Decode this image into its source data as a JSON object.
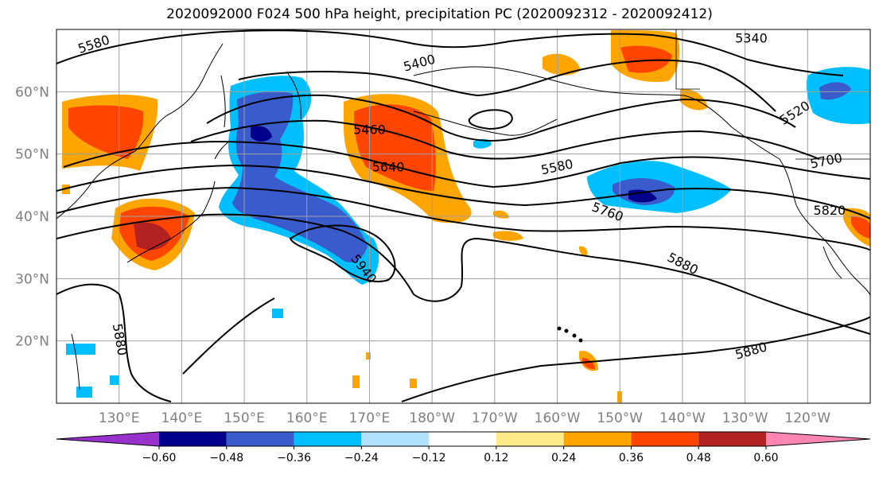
{
  "title": "2020092000 F024 500 hPa height, precipitation PC (2020092312 - 2020092412)",
  "map": {
    "projection": "PlateCarree",
    "lon_range_east": [
      120,
      250
    ],
    "lat_range": [
      10,
      70
    ],
    "lon_ticks": [
      "130°E",
      "140°E",
      "150°E",
      "160°E",
      "170°E",
      "180°W",
      "170°W",
      "160°W",
      "150°W",
      "140°W",
      "130°W",
      "120°W"
    ],
    "lat_ticks": [
      "20°N",
      "30°N",
      "40°N",
      "50°N",
      "60°N"
    ],
    "grid": true
  },
  "contour_labels": [
    {
      "text": "5580",
      "lon": 126,
      "lat": 67.5,
      "angle": -18
    },
    {
      "text": "5400",
      "lon": 178,
      "lat": 64.5,
      "angle": -15
    },
    {
      "text": "5460",
      "lon": 170,
      "lat": 53.8,
      "angle": 0
    },
    {
      "text": "5640",
      "lon": 173,
      "lat": 47.8,
      "angle": 0
    },
    {
      "text": "5580",
      "lon": 200,
      "lat": 47.8,
      "angle": -12
    },
    {
      "text": "5760",
      "lon": 208,
      "lat": 40.6,
      "angle": 20
    },
    {
      "text": "5340",
      "lon": 231,
      "lat": 68.5,
      "angle": 0
    },
    {
      "text": "5520",
      "lon": 238,
      "lat": 56.5,
      "angle": -32
    },
    {
      "text": "5700",
      "lon": 243,
      "lat": 48.8,
      "angle": -12
    },
    {
      "text": "5820",
      "lon": 243.5,
      "lat": 40.8,
      "angle": 0
    },
    {
      "text": "5880",
      "lon": 220,
      "lat": 32.3,
      "angle": 27
    },
    {
      "text": "5940",
      "lon": 169,
      "lat": 31.5,
      "angle": 52
    },
    {
      "text": "5880",
      "lon": 130,
      "lat": 20.2,
      "angle": 80
    },
    {
      "text": "5880",
      "lon": 231,
      "lat": 18.3,
      "angle": -16
    }
  ],
  "colorbar": {
    "colors": [
      "#9932cc",
      "#00008b",
      "#3a5bcc",
      "#00bfff",
      "#b0e2ff",
      "#ffffff",
      "#ffeb8a",
      "#ffa500",
      "#ff4500",
      "#b22222",
      "#ff86b3"
    ],
    "tick_labels": [
      "−0.60",
      "−0.48",
      "−0.36",
      "−0.24",
      "−0.12",
      "0.12",
      "0.24",
      "0.36",
      "0.48",
      "0.60"
    ],
    "extend": "both"
  },
  "colors": {
    "background": "#ffffff",
    "grid": "#a0a0a0",
    "contour": "#000000",
    "coast": "#000000"
  }
}
